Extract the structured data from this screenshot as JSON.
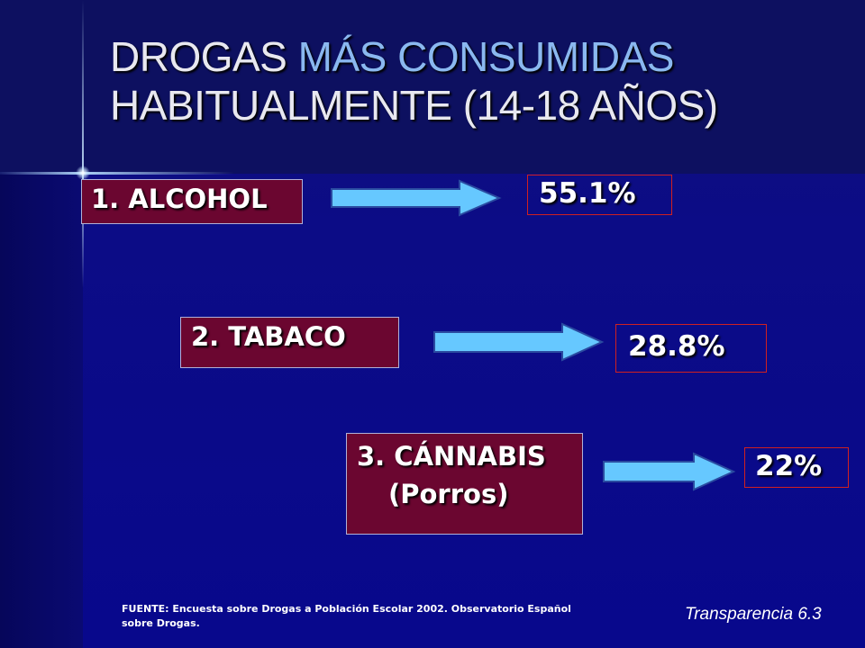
{
  "title": {
    "part1": "DROGAS ",
    "part2": "MÁS CONSUMIDAS",
    "line2": "HABITUALMENTE (14-18 AÑOS)"
  },
  "items": [
    {
      "label": "1. ALCOHOL",
      "value": "55.1%",
      "percent": 55.1
    },
    {
      "label": "2. TABACO",
      "value": "28.8%",
      "percent": 28.8
    },
    {
      "label_line1": "3. CÁNNABIS",
      "label_line2": "(Porros)",
      "value": "22%",
      "percent": 22
    }
  ],
  "source": "FUENTE: Encuesta sobre Drogas a Población Escolar 2002. Observatorio Español sobre Drogas.",
  "slide_label": "Transparencia 6.3",
  "colors": {
    "background": "#0a0a80",
    "title_accent": "#8ab8f0",
    "item_box": "#6b0630",
    "value_border": "#d02020",
    "arrow": "#66c8ff"
  },
  "icons": [
    "right-arrow-icon"
  ]
}
